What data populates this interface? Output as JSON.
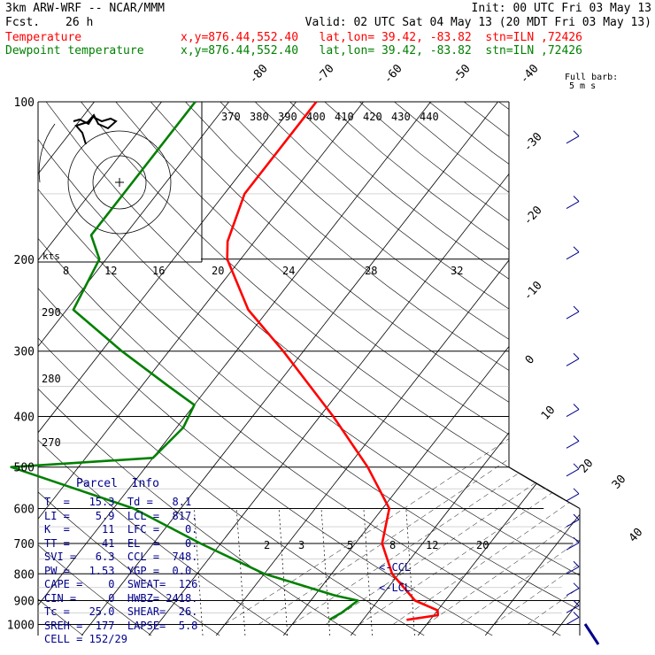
{
  "header": {
    "model": "3km ARW-WRF -- NCAR/MMM",
    "init": "Init: 00 UTC Fri 03 May 13",
    "fcst_label": "Fcst.",
    "fcst_value": "26 h",
    "valid": "Valid: 02 UTC Sat 04 May 13 (20 MDT Fri 03 May 13)",
    "temp_name": "Temperature",
    "temp_info": "x,y=876.44,552.40   lat,lon= 39.42, -83.82  stn=ILN ,72426",
    "dew_name": "Dewpoint temperature",
    "dew_info": "x,y=876.44,552.40   lat,lon= 39.42, -83.82  stn=ILN ,72426",
    "barb_label": "Full barb:",
    "barb_unit": "5 m s",
    "temp_color": "#ff0000",
    "dew_color": "#008000",
    "hodo_color": "#000000",
    "info_color": "#00008b",
    "wind_color": "#00008b"
  },
  "parcel": {
    "title": "Parcel  Info",
    "rows": [
      "T  =   15.3  Td =   8.1",
      "LI =    5.9  LCL =  817.",
      "K  =     11  LFC =    0.",
      "TT =     41  EL  =    0.",
      "SVI =   6.3  CCL =  748.",
      "PW =   1.53  YGP =  0.0",
      "CAPE =    0  SWEAT=  126",
      "CIN =     0  HWBZ= 2418.",
      "Tc =   25.0  SHEAR=  26.",
      "SREH =  177  LAPSE=  5.8",
      "CELL = 152/29"
    ]
  },
  "chart_data": {
    "type": "line",
    "title": "",
    "xlabel": "",
    "ylabel": "",
    "pressure_levels": [
      100,
      200,
      300,
      400,
      500,
      600,
      700,
      800,
      900,
      1000
    ],
    "isotherm_labels": [
      "-80",
      "-70",
      "-60",
      "-50",
      "-40",
      "-30",
      "-20",
      "-10",
      "0",
      "10",
      "20",
      "30",
      "40"
    ],
    "theta_labels": [
      "370",
      "380",
      "390",
      "400",
      "410",
      "420",
      "430",
      "440"
    ],
    "hodograph_speed_labels": [
      "8",
      "12",
      "16",
      "20",
      "24",
      "28",
      "32"
    ],
    "hodograph_unit": "kts",
    "left_axis_labels": [
      "290",
      "280",
      "270"
    ],
    "mixing_ratio_labels": [
      "2",
      "3",
      "5",
      "8",
      "12",
      "20"
    ],
    "annotations": [
      "<-CCL",
      "<-LCL"
    ],
    "series": [
      {
        "name": "Temperature",
        "p": [
          100,
          150,
          185,
          200,
          250,
          300,
          400,
          500,
          600,
          700,
          800,
          900,
          940,
          960,
          980
        ],
        "t": [
          -57,
          -57,
          -54,
          -52,
          -43,
          -33,
          -18,
          -7,
          1,
          4,
          9,
          15.5,
          20,
          20.6,
          16.5
        ]
      },
      {
        "name": "Dewpoint temperature",
        "p": [
          100,
          150,
          180,
          200,
          250,
          300,
          350,
          380,
          420,
          480,
          500,
          600,
          700,
          800,
          880,
          900,
          950,
          980
        ],
        "t": [
          -75,
          -75,
          -75,
          -71,
          -69,
          -57,
          -46,
          -40,
          -39,
          -40,
          -60,
          -37,
          -23,
          -10,
          3,
          7,
          6,
          5
        ]
      }
    ],
    "wind_profile": [
      {
        "p": 120,
        "u": -12,
        "v": -1
      },
      {
        "p": 160,
        "u": -14,
        "v": -3
      },
      {
        "p": 200,
        "u": -11,
        "v": -2
      },
      {
        "p": 260,
        "u": -9,
        "v": -2
      },
      {
        "p": 320,
        "u": -8,
        "v": -3
      },
      {
        "p": 400,
        "u": -6,
        "v": -2
      },
      {
        "p": 460,
        "u": -5,
        "v": -2
      },
      {
        "p": 520,
        "u": -4,
        "v": -1
      },
      {
        "p": 580,
        "u": -3,
        "v": 0
      },
      {
        "p": 650,
        "u": -3,
        "v": 1
      },
      {
        "p": 720,
        "u": -2,
        "v": 1
      },
      {
        "p": 800,
        "u": -2,
        "v": 2
      },
      {
        "p": 880,
        "u": -1,
        "v": 3
      },
      {
        "p": 950,
        "u": 0,
        "v": 3
      },
      {
        "p": 1000,
        "u": 1,
        "v": 3
      }
    ]
  }
}
